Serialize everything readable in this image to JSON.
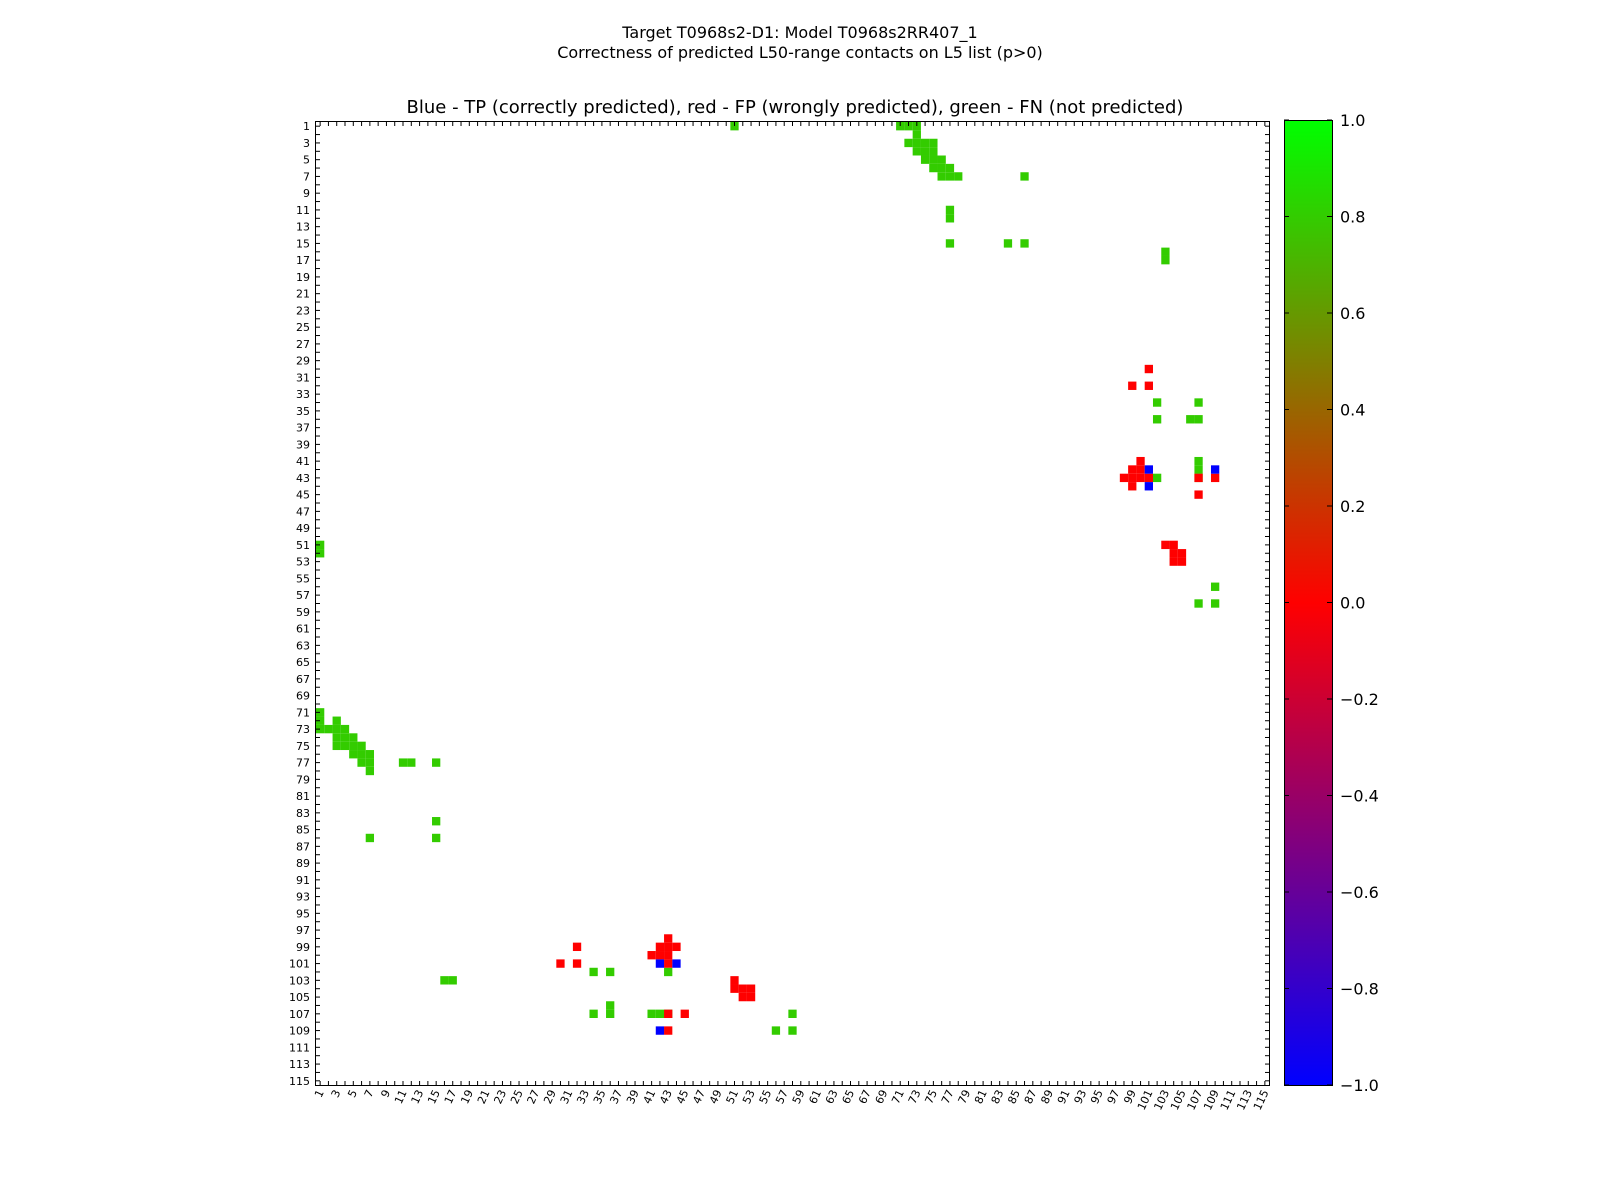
{
  "figure": {
    "title_line1": "Target T0968s2-D1: Model T0968s2RR407_1",
    "title_line2": "Correctness of predicted L50-range contacts on L5 list (p>0)"
  },
  "chart_data": {
    "type": "heatmap",
    "title": "Blue - TP (correctly predicted), red - FP (wrongly predicted), green - FN (not predicted)",
    "xlabel": "",
    "ylabel": "",
    "n_residues": 115,
    "xlim": [
      1,
      115
    ],
    "ylim": [
      1,
      115
    ],
    "x_ticks": [
      1,
      3,
      5,
      7,
      9,
      11,
      13,
      15,
      17,
      19,
      21,
      23,
      25,
      27,
      29,
      31,
      33,
      35,
      37,
      39,
      41,
      43,
      45,
      47,
      49,
      51,
      53,
      55,
      57,
      59,
      61,
      63,
      65,
      67,
      69,
      71,
      73,
      75,
      77,
      79,
      81,
      83,
      85,
      87,
      89,
      91,
      93,
      95,
      97,
      99,
      101,
      103,
      105,
      107,
      109,
      111,
      113,
      115
    ],
    "y_ticks": [
      1,
      3,
      5,
      7,
      9,
      11,
      13,
      15,
      17,
      19,
      21,
      23,
      25,
      27,
      29,
      31,
      33,
      35,
      37,
      39,
      41,
      43,
      45,
      47,
      49,
      51,
      53,
      55,
      57,
      59,
      61,
      63,
      65,
      67,
      69,
      71,
      73,
      75,
      77,
      79,
      81,
      83,
      85,
      87,
      89,
      91,
      93,
      95,
      97,
      99,
      101,
      103,
      105,
      107,
      109,
      111,
      113,
      115
    ],
    "colorbar": {
      "min": -1.0,
      "max": 1.0,
      "ticks": [
        "1.0",
        "0.8",
        "0.6",
        "0.4",
        "0.2",
        "0.0",
        "−0.2",
        "−0.4",
        "−0.6",
        "−0.8",
        "−1.0"
      ],
      "tick_values": [
        1.0,
        0.8,
        0.6,
        0.4,
        0.2,
        0.0,
        -0.2,
        -0.4,
        -0.6,
        -0.8,
        -1.0
      ],
      "colors": [
        "#0000ff",
        "#ff0000",
        "#00ff00"
      ]
    },
    "legend": {
      "tp": {
        "label": "TP (correctly predicted)",
        "value": -1,
        "color": "#0000ff"
      },
      "fp": {
        "label": "FP (wrongly predicted)",
        "value": 0,
        "color": "#ff0000"
      },
      "fn": {
        "label": "FN (not predicted)",
        "value": 0.8,
        "color": "#33cc00"
      }
    },
    "tp_cells": [
      [
        42,
        101
      ],
      [
        44,
        101
      ],
      [
        42,
        109
      ],
      [
        101,
        42
      ],
      [
        101,
        44
      ],
      [
        109,
        42
      ]
    ],
    "fp_cells": [
      [
        43,
        98
      ],
      [
        42,
        99
      ],
      [
        43,
        99
      ],
      [
        44,
        99
      ],
      [
        41,
        100
      ],
      [
        42,
        100
      ],
      [
        43,
        100
      ],
      [
        32,
        99
      ],
      [
        30,
        101
      ],
      [
        32,
        101
      ],
      [
        43,
        101
      ],
      [
        51,
        103
      ],
      [
        51,
        104
      ],
      [
        52,
        104
      ],
      [
        53,
        104
      ],
      [
        52,
        105
      ],
      [
        53,
        105
      ],
      [
        43,
        107
      ],
      [
        45,
        107
      ],
      [
        43,
        109
      ],
      [
        98,
        43
      ],
      [
        99,
        42
      ],
      [
        99,
        43
      ],
      [
        99,
        44
      ],
      [
        100,
        41
      ],
      [
        100,
        42
      ],
      [
        100,
        43
      ],
      [
        99,
        32
      ],
      [
        101,
        30
      ],
      [
        101,
        32
      ],
      [
        101,
        43
      ],
      [
        103,
        51
      ],
      [
        104,
        51
      ],
      [
        104,
        52
      ],
      [
        104,
        53
      ],
      [
        105,
        52
      ],
      [
        105,
        53
      ],
      [
        107,
        43
      ],
      [
        107,
        45
      ],
      [
        109,
        43
      ]
    ],
    "fn_cells": [
      [
        51,
        1
      ],
      [
        71,
        1
      ],
      [
        72,
        1
      ],
      [
        73,
        1
      ],
      [
        73,
        2
      ],
      [
        72,
        3
      ],
      [
        73,
        3
      ],
      [
        74,
        3
      ],
      [
        75,
        3
      ],
      [
        73,
        4
      ],
      [
        74,
        4
      ],
      [
        75,
        4
      ],
      [
        74,
        5
      ],
      [
        75,
        5
      ],
      [
        76,
        5
      ],
      [
        75,
        6
      ],
      [
        76,
        6
      ],
      [
        77,
        6
      ],
      [
        76,
        7
      ],
      [
        77,
        7
      ],
      [
        78,
        7
      ],
      [
        86,
        7
      ],
      [
        77,
        11
      ],
      [
        77,
        12
      ],
      [
        77,
        15
      ],
      [
        84,
        15
      ],
      [
        86,
        15
      ],
      [
        103,
        16
      ],
      [
        103,
        17
      ],
      [
        102,
        34
      ],
      [
        107,
        34
      ],
      [
        102,
        36
      ],
      [
        106,
        36
      ],
      [
        107,
        36
      ],
      [
        107,
        41
      ],
      [
        107,
        42
      ],
      [
        102,
        43
      ],
      [
        107,
        43
      ],
      [
        109,
        56
      ],
      [
        107,
        58
      ],
      [
        109,
        58
      ],
      [
        1,
        51
      ],
      [
        1,
        52
      ],
      [
        1,
        71
      ],
      [
        1,
        72
      ],
      [
        1,
        73
      ],
      [
        2,
        73
      ],
      [
        3,
        72
      ],
      [
        3,
        73
      ],
      [
        3,
        74
      ],
      [
        3,
        75
      ],
      [
        4,
        73
      ],
      [
        4,
        74
      ],
      [
        4,
        75
      ],
      [
        5,
        74
      ],
      [
        5,
        75
      ],
      [
        5,
        76
      ],
      [
        6,
        75
      ],
      [
        6,
        76
      ],
      [
        6,
        77
      ],
      [
        7,
        76
      ],
      [
        7,
        77
      ],
      [
        7,
        78
      ],
      [
        7,
        86
      ],
      [
        11,
        77
      ],
      [
        12,
        77
      ],
      [
        15,
        77
      ],
      [
        15,
        84
      ],
      [
        15,
        86
      ],
      [
        16,
        103
      ],
      [
        17,
        103
      ],
      [
        34,
        102
      ],
      [
        34,
        107
      ],
      [
        36,
        102
      ],
      [
        36,
        106
      ],
      [
        36,
        107
      ],
      [
        41,
        107
      ],
      [
        42,
        107
      ],
      [
        43,
        102
      ],
      [
        43,
        107
      ],
      [
        56,
        109
      ],
      [
        58,
        107
      ],
      [
        58,
        109
      ]
    ]
  }
}
